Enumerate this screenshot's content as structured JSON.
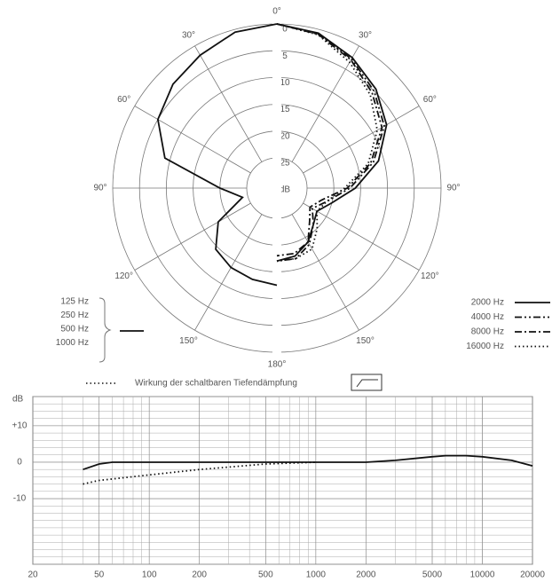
{
  "chart_data": [
    {
      "type": "polar",
      "thetaticks": [
        {
          "value": 0,
          "label": "0°"
        },
        {
          "value": 30,
          "label": "30°"
        },
        {
          "value": 60,
          "label": "60°"
        },
        {
          "value": 90,
          "label": "90°"
        },
        {
          "value": 120,
          "label": "120°"
        },
        {
          "value": 150,
          "label": "150°"
        },
        {
          "value": 180,
          "label": "180°"
        },
        {
          "value": 210,
          "label": "150°"
        },
        {
          "value": 240,
          "label": "120°"
        },
        {
          "value": 270,
          "label": "90°"
        },
        {
          "value": 300,
          "label": "60°"
        },
        {
          "value": 330,
          "label": "30°"
        }
      ],
      "rlim": [
        0,
        25
      ],
      "rticks": [
        0,
        5,
        10,
        15,
        20,
        25
      ],
      "r_label": "dB",
      "theta": [
        0,
        15,
        30,
        45,
        60,
        75,
        90,
        105,
        120,
        135,
        150,
        165,
        180
      ],
      "series": [
        {
          "names": [
            "125 Hz",
            "250 Hz",
            "500 Hz",
            "1000 Hz"
          ],
          "side": "left",
          "dash": "solid",
          "color": "#111",
          "values": [
            0,
            0.5,
            2,
            3.2,
            5,
            9,
            20,
            24,
            18,
            14.5,
            13.5,
            13,
            12.5
          ]
        },
        {
          "name": "2000 Hz",
          "side": "right",
          "dash": "solid",
          "color": "#111",
          "values": [
            0,
            0.7,
            2.5,
            4.5,
            7,
            11,
            16,
            20,
            22,
            21,
            19,
            17.5,
            17
          ]
        },
        {
          "name": "4000 Hz",
          "side": "right",
          "dash": "dashdotdot",
          "color": "#111",
          "values": [
            0,
            0.8,
            2.8,
            5,
            7.5,
            12,
            17,
            21,
            23,
            21,
            18.5,
            17,
            17
          ]
        },
        {
          "name": "8000 Hz",
          "side": "right",
          "dash": "dashdot",
          "color": "#111",
          "values": [
            0,
            0.9,
            3,
            5.5,
            8,
            12.5,
            17.5,
            22,
            23.5,
            22,
            19,
            18,
            18
          ]
        },
        {
          "name": "16000 Hz",
          "side": "right",
          "dash": "dotted",
          "color": "#111",
          "values": [
            0,
            1,
            3.5,
            6,
            9,
            13,
            18,
            21,
            22,
            20,
            17.5,
            17,
            17
          ]
        }
      ]
    },
    {
      "type": "line",
      "log_x": true,
      "legend_title": "Wirkung der schaltbaren Tiefendämpfung",
      "ylabel": "dB",
      "xlim": [
        20,
        20000
      ],
      "xticks": [
        20,
        50,
        100,
        200,
        500,
        1000,
        2000,
        5000,
        10000,
        20000
      ],
      "ylim": [
        -28,
        18
      ],
      "yticks": [
        {
          "value": 10,
          "label": "+10"
        },
        0,
        {
          "value": -10,
          "label": "-10"
        }
      ],
      "grid": true,
      "series": [
        {
          "name": null,
          "dash": "solid",
          "color": "#111",
          "x": [
            40,
            50,
            60,
            80,
            100,
            200,
            500,
            1000,
            2000,
            3000,
            5000,
            6000,
            8000,
            10000,
            15000,
            20000
          ],
          "values": [
            -2,
            -0.5,
            0,
            0,
            0,
            0,
            0,
            0,
            0,
            0.5,
            1.5,
            1.8,
            1.8,
            1.5,
            0.5,
            -1
          ]
        },
        {
          "name": null,
          "dash": "dotted",
          "color": "#111",
          "x": [
            40,
            50,
            100,
            200,
            500,
            1000
          ],
          "values": [
            -6,
            -5,
            -3.5,
            -2,
            -0.5,
            0
          ]
        }
      ]
    }
  ]
}
